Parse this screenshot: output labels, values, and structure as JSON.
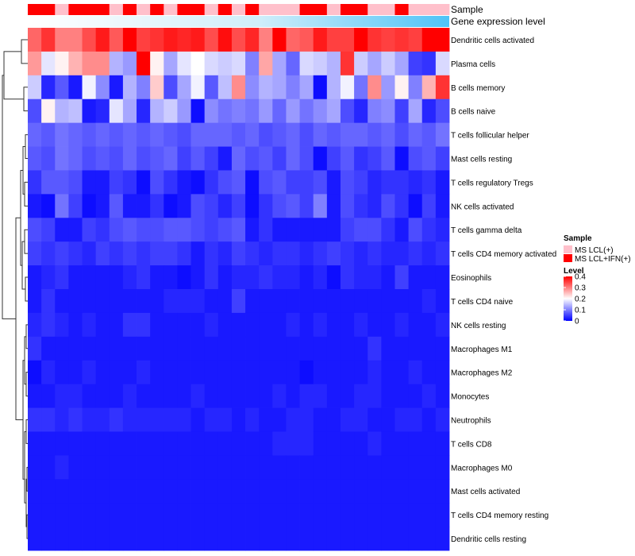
{
  "chart_data": {
    "type": "heatmap",
    "annotation_labels": {
      "sample": "Sample",
      "gene_expression": "Gene expression level"
    },
    "sample_groups": [
      "red",
      "red",
      "pink",
      "red",
      "red",
      "red",
      "pink",
      "red",
      "pink",
      "red",
      "pink",
      "red",
      "red",
      "pink",
      "red",
      "pink",
      "red",
      "pink",
      "pink",
      "pink",
      "red",
      "red",
      "pink",
      "red",
      "red",
      "pink",
      "pink",
      "red",
      "pink",
      "pink",
      "pink"
    ],
    "rows": [
      "Dendritic cells activated",
      "Plasma cells",
      "B cells memory",
      "B cells naive",
      "T cells follicular helper",
      "Mast cells resting",
      "T cells regulatory  Tregs",
      "NK cells activated",
      "T cells gamma delta",
      "T cells CD4 memory activated",
      "Eosinophils",
      "T cells CD4 naive",
      "NK cells resting",
      "Macrophages M1",
      "Macrophages M2",
      "Monocytes",
      "Neutrophils",
      "T cells CD8",
      "Macrophages M0",
      "Mast cells activated",
      "T cells CD4 memory resting",
      "Dendritic cells resting"
    ],
    "matrix": [
      [
        0.32,
        0.36,
        0.3,
        0.3,
        0.34,
        0.38,
        0.33,
        0.4,
        0.35,
        0.36,
        0.38,
        0.37,
        0.38,
        0.34,
        0.39,
        0.34,
        0.37,
        0.3,
        0.4,
        0.32,
        0.33,
        0.38,
        0.35,
        0.35,
        0.4,
        0.36,
        0.35,
        0.36,
        0.35,
        0.4,
        0.4
      ],
      [
        0.28,
        0.18,
        0.21,
        0.26,
        0.29,
        0.29,
        0.14,
        0.12,
        0.4,
        0.21,
        0.13,
        0.18,
        0.2,
        0.17,
        0.16,
        0.17,
        0.1,
        0.27,
        0.13,
        0.08,
        0.17,
        0.16,
        0.14,
        0.36,
        0.16,
        0.13,
        0.16,
        0.13,
        0.05,
        0.04,
        0.17
      ],
      [
        0.16,
        0.03,
        0.07,
        0.02,
        0.19,
        0.11,
        0.02,
        0.14,
        0.1,
        0.24,
        0.06,
        0.13,
        0.19,
        0.07,
        0.15,
        0.29,
        0.11,
        0.14,
        0.13,
        0.1,
        0.13,
        0.01,
        0.14,
        0.19,
        0.09,
        0.29,
        0.12,
        0.21,
        0.1,
        0.26,
        0.36
      ],
      [
        0.06,
        0.21,
        0.14,
        0.15,
        0.02,
        0.03,
        0.18,
        0.13,
        0.03,
        0.14,
        0.16,
        0.12,
        0.01,
        0.11,
        0.09,
        0.1,
        0.09,
        0.12,
        0.08,
        0.12,
        0.09,
        0.11,
        0.13,
        0.06,
        0.03,
        0.1,
        0.11,
        0.05,
        0.13,
        0.03,
        0.06
      ],
      [
        0.08,
        0.07,
        0.09,
        0.08,
        0.07,
        0.08,
        0.07,
        0.08,
        0.07,
        0.08,
        0.07,
        0.06,
        0.08,
        0.08,
        0.08,
        0.07,
        0.08,
        0.06,
        0.07,
        0.08,
        0.06,
        0.08,
        0.07,
        0.08,
        0.08,
        0.07,
        0.08,
        0.06,
        0.08,
        0.07,
        0.09
      ],
      [
        0.07,
        0.06,
        0.09,
        0.08,
        0.06,
        0.07,
        0.06,
        0.08,
        0.06,
        0.07,
        0.08,
        0.05,
        0.07,
        0.05,
        0.02,
        0.08,
        0.06,
        0.07,
        0.05,
        0.08,
        0.06,
        0.01,
        0.05,
        0.07,
        0.04,
        0.05,
        0.07,
        0.01,
        0.06,
        0.07,
        0.05
      ],
      [
        0.04,
        0.07,
        0.07,
        0.06,
        0.02,
        0.02,
        0.05,
        0.04,
        0.01,
        0.06,
        0.04,
        0.02,
        0.01,
        0.04,
        0.06,
        0.07,
        0.01,
        0.06,
        0.07,
        0.05,
        0.05,
        0.06,
        0.02,
        0.06,
        0.05,
        0.03,
        0.04,
        0.04,
        0.03,
        0.04,
        0.02
      ],
      [
        0.02,
        0.01,
        0.09,
        0.05,
        0.01,
        0.02,
        0.07,
        0.02,
        0.02,
        0.04,
        0.01,
        0.02,
        0.06,
        0.05,
        0.03,
        0.05,
        0.01,
        0.04,
        0.06,
        0.07,
        0.05,
        0.1,
        0.02,
        0.06,
        0.04,
        0.03,
        0.06,
        0.04,
        0.01,
        0.05,
        0.02
      ],
      [
        0.06,
        0.05,
        0.02,
        0.02,
        0.05,
        0.04,
        0.06,
        0.07,
        0.06,
        0.06,
        0.07,
        0.07,
        0.06,
        0.05,
        0.06,
        0.07,
        0.02,
        0.04,
        0.02,
        0.02,
        0.02,
        0.02,
        0.02,
        0.05,
        0.06,
        0.06,
        0.04,
        0.02,
        0.06,
        0.04,
        0.03
      ],
      [
        0.05,
        0.04,
        0.05,
        0.04,
        0.03,
        0.05,
        0.04,
        0.05,
        0.04,
        0.05,
        0.05,
        0.04,
        0.02,
        0.04,
        0.03,
        0.05,
        0.04,
        0.03,
        0.04,
        0.04,
        0.03,
        0.04,
        0.05,
        0.04,
        0.03,
        0.04,
        0.03,
        0.03,
        0.04,
        0.03,
        0.04
      ],
      [
        0.02,
        0.03,
        0.04,
        0.02,
        0.02,
        0.02,
        0.02,
        0.03,
        0.04,
        0.02,
        0.02,
        0.01,
        0.02,
        0.04,
        0.02,
        0.03,
        0.03,
        0.04,
        0.03,
        0.03,
        0.02,
        0.03,
        0.01,
        0.04,
        0.03,
        0.03,
        0.02,
        0.05,
        0.02,
        0.02,
        0.02
      ],
      [
        0.02,
        0.04,
        0.02,
        0.02,
        0.02,
        0.02,
        0.02,
        0.02,
        0.02,
        0.02,
        0.03,
        0.03,
        0.03,
        0.02,
        0.02,
        0.05,
        0.02,
        0.02,
        0.02,
        0.02,
        0.02,
        0.02,
        0.02,
        0.02,
        0.02,
        0.02,
        0.02,
        0.02,
        0.02,
        0.03,
        0.02
      ],
      [
        0.03,
        0.04,
        0.03,
        0.02,
        0.03,
        0.02,
        0.02,
        0.04,
        0.04,
        0.02,
        0.02,
        0.02,
        0.02,
        0.03,
        0.02,
        0.02,
        0.02,
        0.02,
        0.02,
        0.03,
        0.02,
        0.03,
        0.02,
        0.02,
        0.03,
        0.02,
        0.02,
        0.03,
        0.02,
        0.02,
        0.03
      ],
      [
        0.04,
        0.02,
        0.02,
        0.02,
        0.02,
        0.02,
        0.02,
        0.02,
        0.02,
        0.02,
        0.02,
        0.02,
        0.02,
        0.02,
        0.02,
        0.02,
        0.02,
        0.02,
        0.02,
        0.02,
        0.02,
        0.02,
        0.02,
        0.02,
        0.02,
        0.04,
        0.02,
        0.02,
        0.02,
        0.02,
        0.02
      ],
      [
        0.01,
        0.03,
        0.02,
        0.02,
        0.03,
        0.02,
        0.02,
        0.02,
        0.03,
        0.02,
        0.02,
        0.02,
        0.02,
        0.02,
        0.02,
        0.02,
        0.02,
        0.02,
        0.02,
        0.02,
        0.01,
        0.02,
        0.02,
        0.02,
        0.02,
        0.03,
        0.02,
        0.02,
        0.03,
        0.02,
        0.02
      ],
      [
        0.02,
        0.02,
        0.03,
        0.03,
        0.02,
        0.02,
        0.02,
        0.03,
        0.02,
        0.02,
        0.02,
        0.02,
        0.03,
        0.02,
        0.02,
        0.02,
        0.02,
        0.02,
        0.03,
        0.02,
        0.03,
        0.03,
        0.02,
        0.02,
        0.03,
        0.03,
        0.02,
        0.02,
        0.02,
        0.03,
        0.02
      ],
      [
        0.04,
        0.04,
        0.03,
        0.04,
        0.03,
        0.03,
        0.04,
        0.03,
        0.03,
        0.03,
        0.03,
        0.03,
        0.02,
        0.03,
        0.03,
        0.02,
        0.03,
        0.02,
        0.02,
        0.03,
        0.03,
        0.02,
        0.02,
        0.03,
        0.03,
        0.02,
        0.02,
        0.03,
        0.03,
        0.02,
        0.03
      ],
      [
        0.02,
        0.02,
        0.02,
        0.02,
        0.02,
        0.02,
        0.02,
        0.02,
        0.02,
        0.02,
        0.02,
        0.02,
        0.02,
        0.02,
        0.02,
        0.02,
        0.02,
        0.02,
        0.03,
        0.03,
        0.03,
        0.02,
        0.02,
        0.02,
        0.02,
        0.03,
        0.02,
        0.02,
        0.02,
        0.02,
        0.02
      ],
      [
        0.02,
        0.02,
        0.03,
        0.02,
        0.02,
        0.02,
        0.02,
        0.02,
        0.02,
        0.02,
        0.02,
        0.02,
        0.02,
        0.02,
        0.02,
        0.02,
        0.02,
        0.02,
        0.02,
        0.02,
        0.02,
        0.02,
        0.02,
        0.02,
        0.02,
        0.02,
        0.02,
        0.02,
        0.02,
        0.02,
        0.02
      ],
      [
        0.02,
        0.02,
        0.02,
        0.02,
        0.02,
        0.02,
        0.02,
        0.02,
        0.02,
        0.02,
        0.02,
        0.02,
        0.02,
        0.02,
        0.02,
        0.02,
        0.02,
        0.02,
        0.02,
        0.02,
        0.02,
        0.02,
        0.02,
        0.02,
        0.02,
        0.02,
        0.02,
        0.02,
        0.02,
        0.02,
        0.02
      ],
      [
        0.02,
        0.02,
        0.02,
        0.02,
        0.02,
        0.02,
        0.02,
        0.02,
        0.02,
        0.02,
        0.02,
        0.02,
        0.02,
        0.02,
        0.02,
        0.02,
        0.02,
        0.02,
        0.02,
        0.02,
        0.02,
        0.02,
        0.02,
        0.02,
        0.02,
        0.02,
        0.02,
        0.02,
        0.02,
        0.02,
        0.02
      ],
      [
        0.02,
        0.02,
        0.02,
        0.02,
        0.02,
        0.02,
        0.02,
        0.02,
        0.02,
        0.02,
        0.02,
        0.02,
        0.02,
        0.02,
        0.02,
        0.02,
        0.02,
        0.02,
        0.02,
        0.02,
        0.02,
        0.02,
        0.02,
        0.02,
        0.02,
        0.02,
        0.02,
        0.02,
        0.02,
        0.02,
        0.02
      ]
    ],
    "color_scale": {
      "min": 0,
      "max": 0.4,
      "low": "#0000ff",
      "mid": "#ffffff",
      "high": "#ff0000"
    },
    "legend": {
      "sample_title": "Sample",
      "sample_entries": [
        {
          "label": "MS LCL(+)",
          "color": "#ffc0cb"
        },
        {
          "label": "MS LCL+IFN(+)",
          "color": "#ff0000"
        }
      ],
      "level_title": "Level",
      "level_ticks": [
        "0.4",
        "0.3",
        "0.2",
        "0.1",
        "0"
      ],
      "placement": "right"
    },
    "gene_expression_gradient": [
      "#ffffff",
      "#4fc3f7"
    ]
  }
}
